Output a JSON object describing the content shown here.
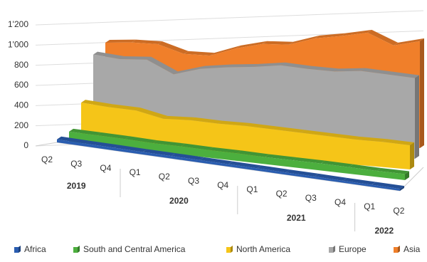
{
  "chart_data": {
    "type": "area3d",
    "categories": [
      "Q2",
      "Q3",
      "Q4",
      "Q1",
      "Q2",
      "Q3",
      "Q4",
      "Q1",
      "Q2",
      "Q3",
      "Q4",
      "Q1",
      "Q2"
    ],
    "category_groups": [
      "2019",
      "2020",
      "2021",
      "2022"
    ],
    "series": [
      {
        "name": "Africa",
        "color": "#2a5db0",
        "values": [
          30,
          28,
          27,
          25,
          25,
          24,
          24,
          23,
          22,
          22,
          20,
          20,
          20
        ]
      },
      {
        "name": "South and Central America",
        "color": "#4caf3e",
        "values": [
          100,
          95,
          90,
          80,
          80,
          75,
          75,
          70,
          70,
          70,
          65,
          60,
          60
        ]
      },
      {
        "name": "North America",
        "color": "#f5c518",
        "values": [
          380,
          360,
          350,
          290,
          300,
          290,
          290,
          280,
          270,
          260,
          250,
          250,
          240
        ]
      },
      {
        "name": "Europe",
        "color": "#a8a8a8",
        "values": [
          850,
          820,
          830,
          700,
          770,
          800,
          820,
          850,
          830,
          820,
          840,
          820,
          800
        ]
      },
      {
        "name": "Asia",
        "color": "#f07f2a",
        "values": [
          960,
          970,
          960,
          870,
          860,
          940,
          990,
          990,
          1060,
          1090,
          1130,
          1010,
          1060
        ]
      }
    ],
    "ylim": [
      0,
      1200
    ],
    "yticks": [
      0,
      200,
      400,
      600,
      800,
      {
        "value": 1000,
        "label": "1'000"
      },
      {
        "value": 1200,
        "label": "1'200"
      }
    ],
    "grid": true,
    "legend": "bottom"
  }
}
